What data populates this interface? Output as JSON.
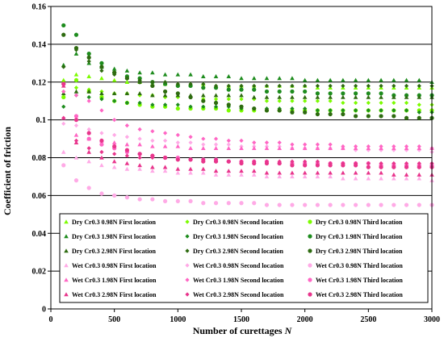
{
  "chart_data": {
    "type": "scatter",
    "title": "",
    "xlabel": "Number  of curettages",
    "xlabel_var": "N",
    "ylabel": "Coefficient of friction",
    "xlim": [
      0,
      3000
    ],
    "ylim": [
      0,
      0.16
    ],
    "x_ticks": [
      0,
      500,
      1000,
      1500,
      2000,
      2500,
      3000
    ],
    "y_ticks": [
      0,
      0.02,
      0.04,
      0.06,
      0.08,
      0.1,
      0.12,
      0.14,
      0.16
    ],
    "y_tick_labels": [
      "0",
      "0.02",
      "0.04",
      "0.06",
      "0.08",
      "0.1",
      "0.12",
      "0.14",
      "0.16"
    ],
    "grid": "horizontal",
    "legend_placement": "bottom, inside plot area, 3 columns",
    "x": [
      100,
      200,
      300,
      400,
      500,
      600,
      700,
      800,
      900,
      1000,
      1100,
      1200,
      1300,
      1400,
      1500,
      1600,
      1700,
      1800,
      1900,
      2000,
      2100,
      2200,
      2300,
      2400,
      2500,
      2600,
      2700,
      2800,
      2900,
      3000
    ],
    "series": [
      {
        "name": "Dry Cr0.3 0.98N First location",
        "color": "#7CFC00",
        "marker": "triangle",
        "values": [
          0.121,
          0.124,
          0.123,
          0.122,
          0.121,
          0.12,
          0.12,
          0.119,
          0.119,
          0.119,
          0.119,
          0.119,
          0.118,
          0.118,
          0.118,
          0.118,
          0.118,
          0.118,
          0.118,
          0.118,
          0.117,
          0.117,
          0.117,
          0.117,
          0.117,
          0.117,
          0.117,
          0.117,
          0.117,
          0.117
        ]
      },
      {
        "name": "Dry Cr0.3 0.98N Second location",
        "color": "#7CFC00",
        "marker": "diamond",
        "values": [
          0.115,
          0.117,
          0.116,
          0.115,
          0.114,
          0.114,
          0.113,
          0.113,
          0.112,
          0.112,
          0.112,
          0.111,
          0.111,
          0.111,
          0.111,
          0.111,
          0.11,
          0.11,
          0.11,
          0.11,
          0.11,
          0.11,
          0.109,
          0.109,
          0.109,
          0.109,
          0.109,
          0.109,
          0.108,
          0.108
        ]
      },
      {
        "name": "Dry Cr0.3 0.98N Third location",
        "color": "#7CFC00",
        "marker": "circle",
        "values": [
          0.112,
          0.121,
          0.115,
          0.112,
          0.11,
          0.109,
          0.108,
          0.107,
          0.107,
          0.106,
          0.106,
          0.106,
          0.106,
          0.105,
          0.105,
          0.105,
          0.105,
          0.105,
          0.105,
          0.105,
          0.105,
          0.105,
          0.105,
          0.105,
          0.105,
          0.105,
          0.105,
          0.105,
          0.105,
          0.105
        ]
      },
      {
        "name": "Dry Cr0.3 1.98N First location",
        "color": "#1E8C1E",
        "marker": "triangle",
        "values": [
          0.129,
          0.135,
          0.13,
          0.128,
          0.127,
          0.126,
          0.125,
          0.125,
          0.124,
          0.124,
          0.124,
          0.123,
          0.123,
          0.123,
          0.122,
          0.122,
          0.122,
          0.122,
          0.122,
          0.121,
          0.121,
          0.121,
          0.121,
          0.121,
          0.121,
          0.121,
          0.121,
          0.121,
          0.121,
          0.12
        ]
      },
      {
        "name": "Dry Cr0.3 1.98N Second location",
        "color": "#1E8C1E",
        "marker": "diamond",
        "values": [
          0.107,
          0.113,
          0.112,
          0.111,
          0.11,
          0.109,
          0.109,
          0.108,
          0.108,
          0.108,
          0.107,
          0.107,
          0.107,
          0.107,
          0.106,
          0.106,
          0.106,
          0.106,
          0.106,
          0.106,
          0.105,
          0.105,
          0.105,
          0.105,
          0.105,
          0.105,
          0.105,
          0.105,
          0.104,
          0.104
        ]
      },
      {
        "name": "Dry Cr0.3 1.98N Third location",
        "color": "#1E8C1E",
        "marker": "circle",
        "values": [
          0.15,
          0.145,
          0.135,
          0.13,
          0.125,
          0.123,
          0.122,
          0.12,
          0.119,
          0.118,
          0.118,
          0.117,
          0.117,
          0.116,
          0.116,
          0.116,
          0.115,
          0.115,
          0.115,
          0.115,
          0.114,
          0.114,
          0.114,
          0.114,
          0.114,
          0.114,
          0.113,
          0.113,
          0.113,
          0.113
        ]
      },
      {
        "name": "Dry Cr0.3 2.98N First location",
        "color": "#2E6B10",
        "marker": "triangle",
        "values": [
          0.114,
          0.115,
          0.115,
          0.114,
          0.114,
          0.114,
          0.114,
          0.113,
          0.113,
          0.113,
          0.113,
          0.113,
          0.113,
          0.113,
          0.113,
          0.112,
          0.112,
          0.112,
          0.112,
          0.112,
          0.112,
          0.112,
          0.112,
          0.112,
          0.112,
          0.112,
          0.112,
          0.112,
          0.112,
          0.112
        ]
      },
      {
        "name": "Dry Cr0.3 2.98N Second location",
        "color": "#2E6B10",
        "marker": "diamond",
        "values": [
          0.128,
          0.137,
          0.131,
          0.126,
          0.124,
          0.122,
          0.121,
          0.12,
          0.12,
          0.119,
          0.119,
          0.119,
          0.118,
          0.118,
          0.118,
          0.118,
          0.118,
          0.118,
          0.118,
          0.118,
          0.118,
          0.118,
          0.118,
          0.118,
          0.118,
          0.118,
          0.118,
          0.118,
          0.118,
          0.118
        ]
      },
      {
        "name": "Dry Cr0.3 2.98N Third location",
        "color": "#2E6B10",
        "marker": "circle",
        "values": [
          0.145,
          0.138,
          0.133,
          0.128,
          0.125,
          0.122,
          0.12,
          0.118,
          0.115,
          0.114,
          0.112,
          0.11,
          0.109,
          0.108,
          0.107,
          0.106,
          0.105,
          0.105,
          0.104,
          0.104,
          0.103,
          0.103,
          0.103,
          0.102,
          0.102,
          0.102,
          0.102,
          0.101,
          0.101,
          0.101
        ]
      },
      {
        "name": "Wet Cr0.3 0.98N First location",
        "color": "#FFAAE6",
        "marker": "triangle",
        "values": [
          0.083,
          0.08,
          0.078,
          0.076,
          0.075,
          0.074,
          0.074,
          0.073,
          0.073,
          0.072,
          0.072,
          0.072,
          0.071,
          0.071,
          0.071,
          0.071,
          0.07,
          0.07,
          0.07,
          0.07,
          0.07,
          0.07,
          0.069,
          0.069,
          0.069,
          0.069,
          0.069,
          0.069,
          0.069,
          0.068
        ]
      },
      {
        "name": "Wet Cr0.3 0.98N Second location",
        "color": "#FFAAE6",
        "marker": "diamond",
        "values": [
          0.098,
          0.097,
          0.095,
          0.093,
          0.092,
          0.091,
          0.09,
          0.089,
          0.089,
          0.088,
          0.088,
          0.087,
          0.087,
          0.087,
          0.086,
          0.086,
          0.086,
          0.086,
          0.085,
          0.085,
          0.085,
          0.085,
          0.085,
          0.084,
          0.084,
          0.084,
          0.084,
          0.084,
          0.084,
          0.083
        ]
      },
      {
        "name": "Wet Cr0.3 0.98N Third location",
        "color": "#FFAAE6",
        "marker": "circle",
        "values": [
          0.076,
          0.068,
          0.064,
          0.061,
          0.06,
          0.059,
          0.058,
          0.058,
          0.057,
          0.057,
          0.057,
          0.056,
          0.056,
          0.056,
          0.056,
          0.056,
          0.055,
          0.055,
          0.055,
          0.055,
          0.055,
          0.055,
          0.055,
          0.055,
          0.055,
          0.055,
          0.055,
          0.055,
          0.055,
          0.055
        ]
      },
      {
        "name": "Wet Cr0.3 1.98N First location",
        "color": "#FF66C4",
        "marker": "triangle",
        "values": [
          0.101,
          0.092,
          0.09,
          0.089,
          0.088,
          0.087,
          0.087,
          0.086,
          0.086,
          0.086,
          0.085,
          0.085,
          0.085,
          0.085,
          0.085,
          0.085,
          0.085,
          0.085,
          0.085,
          0.085,
          0.085,
          0.085,
          0.085,
          0.085,
          0.085,
          0.085,
          0.085,
          0.085,
          0.085,
          0.085
        ]
      },
      {
        "name": "Wet Cr0.3 1.98N Second location",
        "color": "#FF66C4",
        "marker": "diamond",
        "values": [
          0.115,
          0.113,
          0.11,
          0.105,
          0.1,
          0.097,
          0.095,
          0.094,
          0.093,
          0.092,
          0.091,
          0.09,
          0.09,
          0.089,
          0.089,
          0.088,
          0.088,
          0.088,
          0.087,
          0.087,
          0.087,
          0.087,
          0.086,
          0.086,
          0.086,
          0.086,
          0.086,
          0.086,
          0.086,
          0.085
        ]
      },
      {
        "name": "Wet Cr0.3 1.98N Third location",
        "color": "#FF66C4",
        "marker": "circle",
        "values": [
          0.119,
          0.102,
          0.09,
          0.087,
          0.085,
          0.083,
          0.082,
          0.081,
          0.08,
          0.08,
          0.079,
          0.079,
          0.079,
          0.078,
          0.078,
          0.078,
          0.078,
          0.077,
          0.077,
          0.077,
          0.077,
          0.077,
          0.077,
          0.077,
          0.077,
          0.076,
          0.076,
          0.076,
          0.076,
          0.076
        ]
      },
      {
        "name": "Wet Cr0.3 2.98N First location",
        "color": "#E8358C",
        "marker": "triangle",
        "values": [
          0.118,
          0.088,
          0.083,
          0.08,
          0.078,
          0.077,
          0.076,
          0.075,
          0.075,
          0.074,
          0.074,
          0.074,
          0.073,
          0.073,
          0.073,
          0.073,
          0.072,
          0.072,
          0.072,
          0.072,
          0.072,
          0.072,
          0.072,
          0.072,
          0.072,
          0.072,
          0.071,
          0.071,
          0.071,
          0.071
        ]
      },
      {
        "name": "Wet Cr0.3 2.98N Second location",
        "color": "#E8358C",
        "marker": "diamond",
        "values": [
          0.101,
          0.089,
          0.085,
          0.083,
          0.082,
          0.081,
          0.08,
          0.08,
          0.08,
          0.079,
          0.079,
          0.079,
          0.079,
          0.078,
          0.078,
          0.078,
          0.078,
          0.078,
          0.078,
          0.078,
          0.078,
          0.077,
          0.077,
          0.077,
          0.077,
          0.077,
          0.077,
          0.077,
          0.077,
          0.077
        ]
      },
      {
        "name": "Wet Cr0.3 2.98N Third location",
        "color": "#E8358C",
        "marker": "circle",
        "values": [
          0.119,
          0.1,
          0.093,
          0.089,
          0.086,
          0.084,
          0.082,
          0.081,
          0.08,
          0.079,
          0.079,
          0.078,
          0.078,
          0.078,
          0.077,
          0.077,
          0.077,
          0.077,
          0.076,
          0.076,
          0.076,
          0.076,
          0.076,
          0.076,
          0.075,
          0.075,
          0.075,
          0.075,
          0.075,
          0.075
        ]
      }
    ]
  }
}
